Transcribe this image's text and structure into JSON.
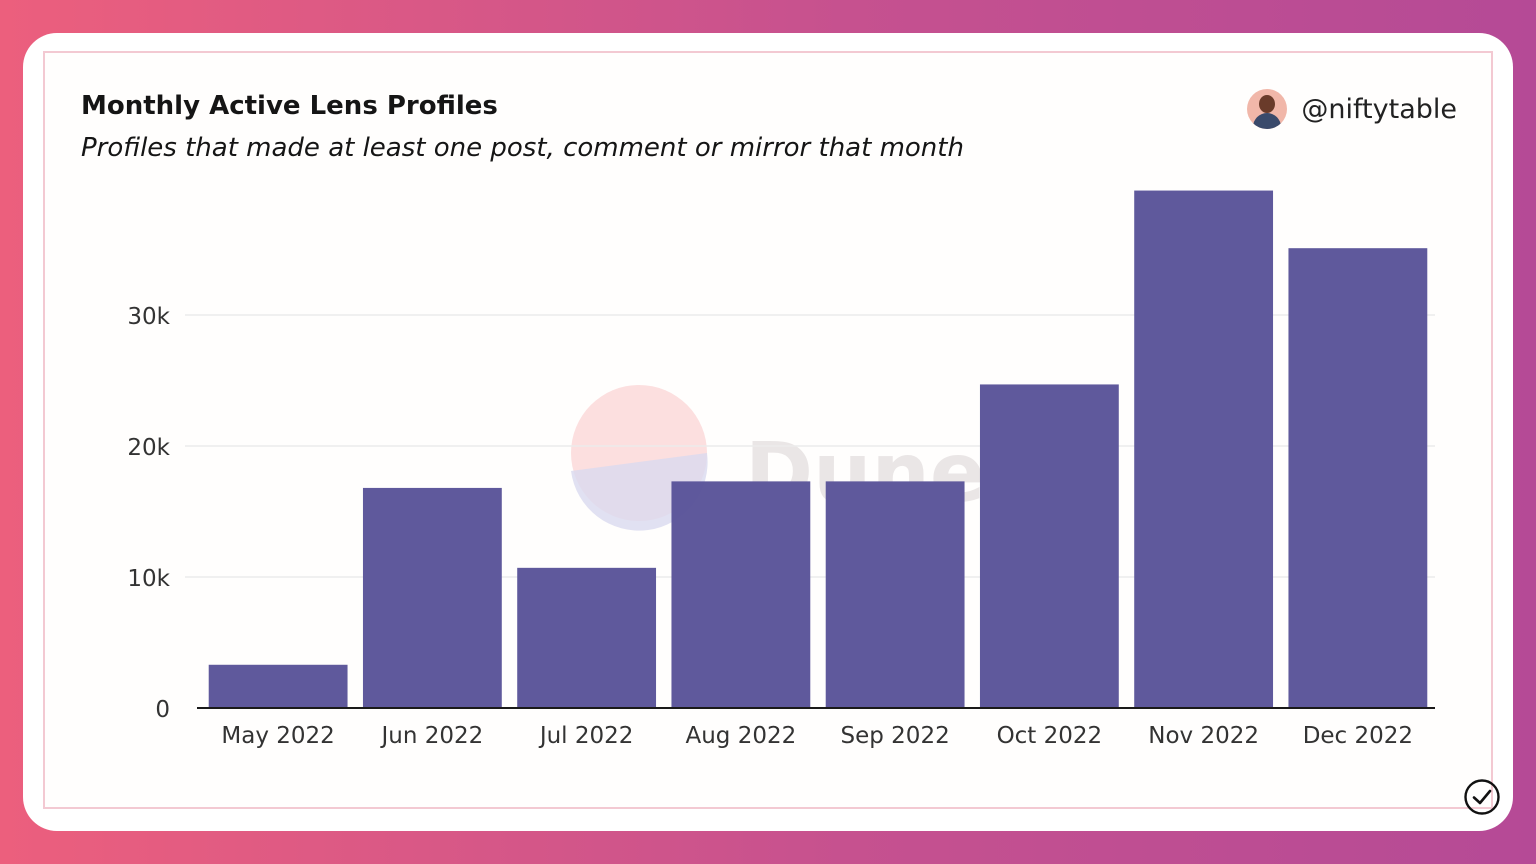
{
  "header": {
    "title": "Monthly Active Lens Profiles",
    "subtitle": "Profiles that made at least one post, comment or mirror that month",
    "author": "@niftytable"
  },
  "watermark": {
    "text": "Dune"
  },
  "colors": {
    "bar": "#5a5499",
    "background_gradient": [
      "#ec5f7d",
      "#b54a96"
    ],
    "grid": "#ececec",
    "axis": "#1a1a1a"
  },
  "chart_data": {
    "type": "bar",
    "title": "Monthly Active Lens Profiles",
    "subtitle": "Profiles that made at least one post, comment or mirror that month",
    "categories": [
      "May 2022",
      "Jun 2022",
      "Jul 2022",
      "Aug 2022",
      "Sep 2022",
      "Oct 2022",
      "Nov 2022",
      "Dec 2022"
    ],
    "values": [
      3300,
      16800,
      10700,
      17300,
      17300,
      24700,
      39500,
      35100
    ],
    "yticks": [
      0,
      10000,
      20000,
      30000
    ],
    "ytick_labels": [
      "0",
      "10k",
      "20k",
      "30k"
    ],
    "ylim": [
      0,
      40000
    ],
    "xlabel": "",
    "ylabel": "",
    "grid": true,
    "legend": "none"
  }
}
